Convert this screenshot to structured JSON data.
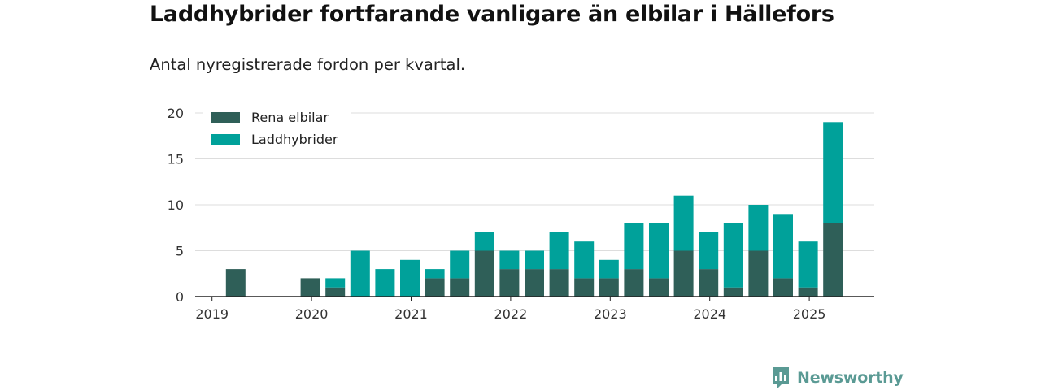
{
  "title": "Laddhybrider fortfarande vanligare än elbilar i Hällefors",
  "subtitle": "Antal nyregistrerade fordon per kvartal.",
  "brand": "Newsworthy",
  "chart_data": {
    "type": "bar",
    "stacked": true,
    "categories": [
      "2019Q1",
      "2019Q2",
      "2019Q3",
      "2019Q4",
      "2020Q1",
      "2020Q2",
      "2020Q3",
      "2020Q4",
      "2021Q1",
      "2021Q2",
      "2021Q3",
      "2021Q4",
      "2022Q1",
      "2022Q2",
      "2022Q3",
      "2022Q4",
      "2023Q1",
      "2023Q2",
      "2023Q3",
      "2023Q4",
      "2024Q1",
      "2024Q2",
      "2024Q3",
      "2024Q4",
      "2025Q1",
      "2025Q2"
    ],
    "x_tick_labels": [
      "2019",
      "2020",
      "2021",
      "2022",
      "2023",
      "2024",
      "2025"
    ],
    "series": [
      {
        "name": "Rena elbilar",
        "color": "#2f5f58",
        "values": [
          0,
          3,
          0,
          0,
          2,
          1,
          0,
          0,
          0,
          2,
          2,
          5,
          3,
          3,
          3,
          2,
          2,
          3,
          2,
          5,
          3,
          1,
          5,
          2,
          1,
          8
        ]
      },
      {
        "name": "Laddhybrider",
        "color": "#00a19a",
        "values": [
          0,
          0,
          0,
          0,
          0,
          1,
          5,
          3,
          4,
          1,
          3,
          2,
          2,
          2,
          4,
          4,
          2,
          5,
          6,
          6,
          4,
          7,
          5,
          7,
          5,
          11
        ]
      }
    ],
    "ylim": [
      0,
      20
    ],
    "yticks": [
      0,
      5,
      10,
      15,
      20
    ],
    "grid": true,
    "legend_position": "top-left"
  }
}
